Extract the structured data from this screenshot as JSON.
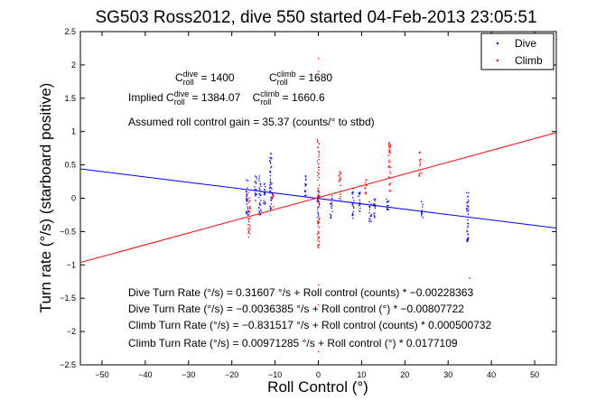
{
  "chart_data": {
    "type": "scatter",
    "title": "SG503 Ross2012, dive 550 started 04-Feb-2013 23:05:51",
    "xlabel": "Roll Control (°)",
    "ylabel": "Turn rate (°/s) (starboard positive)",
    "xlim": [
      -55,
      55
    ],
    "ylim": [
      -2.5,
      2.5
    ],
    "xticks": [
      "−50",
      "−40",
      "−30",
      "−20",
      "−10",
      "0",
      "10",
      "20",
      "30",
      "40",
      "50"
    ],
    "yticks": [
      "2.5",
      "2",
      "1.5",
      "1",
      "0.5",
      "0",
      "−0.5",
      "−1",
      "−1.5",
      "−2",
      "−2.5"
    ],
    "grid": false,
    "legend_position": "top-right",
    "series": [
      {
        "name": "Dive",
        "color": "#0000ff",
        "columns": [
          {
            "x": -16.5,
            "ymin": -0.3,
            "ymax": 0.3
          },
          {
            "x": -14.5,
            "ymin": -0.05,
            "ymax": 0.35
          },
          {
            "x": -13.5,
            "ymin": -0.25,
            "ymax": 0.4
          },
          {
            "x": -12.5,
            "ymin": -0.1,
            "ymax": 0.25
          },
          {
            "x": -11.0,
            "ymin": -0.2,
            "ymax": 0.7
          },
          {
            "x": -3.0,
            "ymin": 0.0,
            "ymax": 0.35
          },
          {
            "x": 0.0,
            "ymin": -0.25,
            "ymax": 0.2
          },
          {
            "x": 3.0,
            "ymin": -0.3,
            "ymax": 0.05
          },
          {
            "x": 8.0,
            "ymin": -0.3,
            "ymax": 0.2
          },
          {
            "x": 9.5,
            "ymin": -0.2,
            "ymax": 0.1
          },
          {
            "x": 12.0,
            "ymin": -0.35,
            "ymax": 0.0
          },
          {
            "x": 13.0,
            "ymin": -0.3,
            "ymax": 0.0
          },
          {
            "x": 16.0,
            "ymin": -0.25,
            "ymax": 0.0
          },
          {
            "x": 24.0,
            "ymin": -0.3,
            "ymax": -0.05
          },
          {
            "x": 34.5,
            "ymin": -0.7,
            "ymax": 0.1
          }
        ],
        "outliers": [
          {
            "x": 35.0,
            "y": -1.2
          }
        ]
      },
      {
        "name": "Climb",
        "color": "#ff0000",
        "columns": [
          {
            "x": -16.0,
            "ymin": -0.6,
            "ymax": 0.1
          },
          {
            "x": -10.5,
            "ymin": -0.15,
            "ymax": 0.1
          },
          {
            "x": 0.0,
            "ymin": -0.75,
            "ymax": 0.9
          },
          {
            "x": 5.0,
            "ymin": -0.05,
            "ymax": 0.4
          },
          {
            "x": 11.0,
            "ymin": 0.05,
            "ymax": 0.3
          },
          {
            "x": 16.5,
            "ymin": 0.1,
            "ymax": 0.85
          },
          {
            "x": 23.5,
            "ymin": 0.3,
            "ymax": 0.7
          }
        ],
        "outliers": [
          {
            "x": 0.0,
            "y": 2.1
          },
          {
            "x": 0.0,
            "y": 1.9
          },
          {
            "x": 0.0,
            "y": -1.6
          },
          {
            "x": 0.0,
            "y": -2.3
          },
          {
            "x": 0.0,
            "y": -1.3
          },
          {
            "x": 0.0,
            "y": 1.1
          }
        ]
      }
    ],
    "fit_lines": [
      {
        "color": "#0000ff",
        "intercept": -0.0036385,
        "slope": -0.00807722
      },
      {
        "color": "#ff0000",
        "intercept": 0.00971285,
        "slope": 0.0177109
      }
    ],
    "annotations": {
      "c_dive": {
        "pre": "C",
        "sup": "dive",
        "sub": "roll",
        "post": " = 1400"
      },
      "c_climb": {
        "pre": "C",
        "sup": "climb",
        "sub": "roll",
        "post": " = 1680"
      },
      "implied_pre": "Implied ",
      "implied_dive": {
        "pre": "C",
        "sup": "dive",
        "sub": "roll",
        "post": " = 1384.07"
      },
      "implied_climb": {
        "pre": "C",
        "sup": "climb",
        "sub": "roll",
        "post": " = 1660.6"
      },
      "gain": "Assumed roll control gain = 35.37 (counts/° to stbd)",
      "eq1": "Dive Turn Rate (°/s) = 0.31607 °/s + Roll control (counts) * −0.00228363",
      "eq2": "Dive Turn Rate (°/s) = −0.0036385 °/s + Roll control (°) * −0.00807722",
      "eq3": "Climb Turn Rate (°/s) = −0.831517 °/s + Roll control (counts) * 0.000500732",
      "eq4": "Climb Turn Rate (°/s) = 0.00971285 °/s + Roll control (°) * 0.0177109"
    }
  }
}
